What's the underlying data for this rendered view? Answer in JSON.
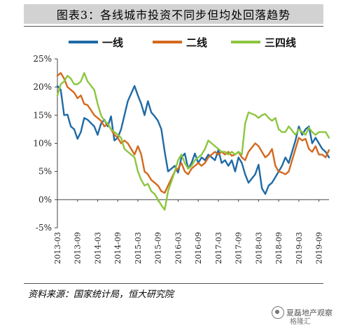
{
  "title": "图表3：各线城市投资不同步但均处回落趋势",
  "source": "资料来源：国家统计局，恒大研究院",
  "watermark": {
    "text": "夏磊地产观察",
    "sub": "格隆汇"
  },
  "chart_data": {
    "type": "line",
    "title": "图表3：各线城市投资不同步但均处回落趋势",
    "ylim": [
      -5,
      25
    ],
    "yticks": [
      "25%",
      "20%",
      "15%",
      "10%",
      "5%",
      "0%",
      "-5%"
    ],
    "ytick_values": [
      25,
      20,
      15,
      10,
      5,
      0,
      -5
    ],
    "xticks": [
      "2013-03",
      "2013-09",
      "2014-03",
      "2014-09",
      "2015-03",
      "2015-09",
      "2016-03",
      "2016-09",
      "2017-03",
      "2017-09",
      "2018-03",
      "2018-09",
      "2019-03",
      "2019-09"
    ],
    "x_start": "2013-03",
    "x_end": "2019-12",
    "legend_position": "top",
    "grid": false,
    "series": [
      {
        "name": "一线",
        "color": "#1f6aa6",
        "x": [
          "2013-03",
          "2013-04",
          "2013-05",
          "2013-06",
          "2013-07",
          "2013-08",
          "2013-09",
          "2013-10",
          "2013-11",
          "2013-12",
          "2014-02",
          "2014-03",
          "2014-04",
          "2014-05",
          "2014-06",
          "2014-07",
          "2014-08",
          "2014-09",
          "2014-10",
          "2014-11",
          "2014-12",
          "2015-02",
          "2015-03",
          "2015-04",
          "2015-05",
          "2015-06",
          "2015-07",
          "2015-08",
          "2015-09",
          "2015-10",
          "2015-11",
          "2015-12",
          "2016-02",
          "2016-03",
          "2016-04",
          "2016-05",
          "2016-06",
          "2016-07",
          "2016-08",
          "2016-09",
          "2016-10",
          "2016-11",
          "2016-12",
          "2017-02",
          "2017-03",
          "2017-04",
          "2017-05",
          "2017-06",
          "2017-07",
          "2017-08",
          "2017-09",
          "2017-10",
          "2017-11",
          "2017-12",
          "2018-02",
          "2018-03",
          "2018-04",
          "2018-05",
          "2018-06",
          "2018-07",
          "2018-08",
          "2018-09",
          "2018-10",
          "2018-11",
          "2018-12",
          "2019-02",
          "2019-03",
          "2019-04",
          "2019-05",
          "2019-06",
          "2019-07",
          "2019-08",
          "2019-09",
          "2019-10",
          "2019-11",
          "2019-12"
        ],
        "y": [
          20.2,
          19.5,
          15.0,
          15.1,
          13.0,
          12.5,
          10.8,
          12.0,
          14.5,
          14.2,
          13.0,
          11.5,
          13.5,
          14.2,
          13.0,
          14.8,
          10.5,
          11.0,
          12.5,
          15.0,
          17.5,
          20.2,
          18.5,
          17.0,
          15.0,
          17.5,
          15.5,
          14.8,
          14.0,
          12.5,
          8.5,
          5.0,
          6.0,
          4.8,
          7.5,
          8.2,
          5.5,
          6.5,
          8.2,
          6.5,
          7.5,
          7.0,
          8.0,
          7.0,
          8.8,
          6.5,
          7.0,
          6.0,
          7.0,
          5.0,
          7.5,
          6.5,
          4.5,
          3.0,
          4.5,
          6.2,
          2.0,
          1.0,
          2.5,
          3.0,
          4.0,
          5.0,
          6.0,
          7.5,
          6.5,
          10.5,
          13.0,
          11.5,
          12.5,
          13.0,
          10.0,
          11.0,
          10.0,
          9.0,
          8.5,
          7.5
        ]
      },
      {
        "name": "二线",
        "color": "#d4691e",
        "x": [
          "2013-03",
          "2013-04",
          "2013-05",
          "2013-06",
          "2013-07",
          "2013-08",
          "2013-09",
          "2013-10",
          "2013-11",
          "2013-12",
          "2014-02",
          "2014-03",
          "2014-04",
          "2014-05",
          "2014-06",
          "2014-07",
          "2014-08",
          "2014-09",
          "2014-10",
          "2014-11",
          "2014-12",
          "2015-02",
          "2015-03",
          "2015-04",
          "2015-05",
          "2015-06",
          "2015-07",
          "2015-08",
          "2015-09",
          "2015-10",
          "2015-11",
          "2015-12",
          "2016-02",
          "2016-03",
          "2016-04",
          "2016-05",
          "2016-06",
          "2016-07",
          "2016-08",
          "2016-09",
          "2016-10",
          "2016-11",
          "2016-12",
          "2017-02",
          "2017-03",
          "2017-04",
          "2017-05",
          "2017-06",
          "2017-07",
          "2017-08",
          "2017-09",
          "2017-10",
          "2017-11",
          "2017-12",
          "2018-02",
          "2018-03",
          "2018-04",
          "2018-05",
          "2018-06",
          "2018-07",
          "2018-08",
          "2018-09",
          "2018-10",
          "2018-11",
          "2018-12",
          "2019-02",
          "2019-03",
          "2019-04",
          "2019-05",
          "2019-06",
          "2019-07",
          "2019-08",
          "2019-09",
          "2019-10",
          "2019-11",
          "2019-12"
        ],
        "y": [
          22.0,
          22.5,
          21.5,
          20.0,
          19.5,
          19.0,
          18.0,
          18.5,
          17.0,
          16.8,
          15.0,
          14.5,
          14.0,
          13.0,
          13.5,
          12.5,
          11.5,
          11.0,
          10.0,
          10.5,
          10.0,
          8.0,
          9.5,
          8.0,
          5.0,
          4.5,
          3.5,
          3.0,
          2.5,
          1.5,
          1.2,
          2.5,
          5.0,
          5.5,
          6.5,
          5.0,
          4.5,
          5.5,
          6.0,
          6.5,
          6.0,
          6.5,
          7.5,
          8.5,
          8.0,
          8.5,
          8.0,
          8.5,
          7.8,
          8.0,
          8.5,
          7.5,
          7.0,
          8.5,
          10.0,
          9.5,
          8.5,
          7.5,
          8.0,
          9.0,
          6.0,
          5.0,
          4.8,
          4.5,
          5.0,
          9.0,
          11.0,
          10.5,
          10.8,
          9.0,
          8.5,
          9.5,
          8.0,
          8.0,
          7.5,
          8.8
        ]
      },
      {
        "name": "三四线",
        "color": "#8cc63f",
        "x": [
          "2013-03",
          "2013-04",
          "2013-05",
          "2013-06",
          "2013-07",
          "2013-08",
          "2013-09",
          "2013-10",
          "2013-11",
          "2013-12",
          "2014-02",
          "2014-03",
          "2014-04",
          "2014-05",
          "2014-06",
          "2014-07",
          "2014-08",
          "2014-09",
          "2014-10",
          "2014-11",
          "2014-12",
          "2015-02",
          "2015-03",
          "2015-04",
          "2015-05",
          "2015-06",
          "2015-07",
          "2015-08",
          "2015-09",
          "2015-10",
          "2015-11",
          "2015-12",
          "2016-02",
          "2016-03",
          "2016-04",
          "2016-05",
          "2016-06",
          "2016-07",
          "2016-08",
          "2016-09",
          "2016-10",
          "2016-11",
          "2016-12",
          "2017-02",
          "2017-03",
          "2017-04",
          "2017-05",
          "2017-06",
          "2017-07",
          "2017-08",
          "2017-09",
          "2017-10",
          "2017-11",
          "2017-12",
          "2018-02",
          "2018-03",
          "2018-04",
          "2018-05",
          "2018-06",
          "2018-07",
          "2018-08",
          "2018-09",
          "2018-10",
          "2018-11",
          "2018-12",
          "2019-02",
          "2019-03",
          "2019-04",
          "2019-05",
          "2019-06",
          "2019-07",
          "2019-08",
          "2019-09",
          "2019-10",
          "2019-11",
          "2019-12"
        ],
        "y": [
          18.5,
          20.5,
          21.0,
          22.0,
          21.5,
          20.5,
          20.5,
          21.0,
          22.5,
          21.0,
          19.5,
          17.0,
          15.0,
          14.0,
          13.5,
          12.5,
          12.0,
          11.5,
          11.0,
          9.0,
          8.5,
          7.5,
          5.0,
          3.5,
          2.5,
          2.8,
          1.5,
          1.0,
          0.0,
          -1.0,
          -1.8,
          1.5,
          5.0,
          7.0,
          8.0,
          6.5,
          5.5,
          6.0,
          7.0,
          7.5,
          8.0,
          9.0,
          10.5,
          9.5,
          9.0,
          8.5,
          8.5,
          8.0,
          8.5,
          8.0,
          8.5,
          8.0,
          13.5,
          15.5,
          15.0,
          14.5,
          15.0,
          15.2,
          14.5,
          14.0,
          14.5,
          12.5,
          12.0,
          12.0,
          13.0,
          11.5,
          12.5,
          12.0,
          11.5,
          12.8,
          12.0,
          11.5,
          12.0,
          12.0,
          12.0,
          11.0
        ]
      }
    ]
  }
}
